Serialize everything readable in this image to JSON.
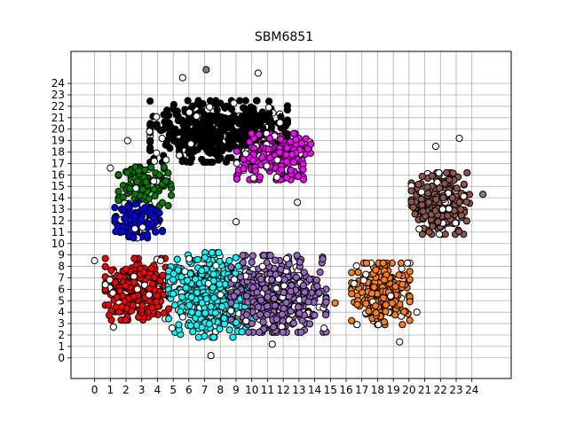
{
  "chart_data": {
    "type": "scatter",
    "title": "SBM6851",
    "xlabel": "",
    "ylabel": "",
    "xlim": [
      -1.5,
      26.5
    ],
    "ylim": [
      -1.8,
      26.8
    ],
    "x_ticks": [
      0,
      1,
      2,
      3,
      4,
      5,
      6,
      7,
      8,
      9,
      10,
      11,
      12,
      13,
      14,
      15,
      16,
      17,
      18,
      19,
      20,
      21,
      22,
      23,
      24
    ],
    "y_ticks": [
      0,
      1,
      2,
      3,
      4,
      5,
      6,
      7,
      8,
      9,
      10,
      11,
      12,
      13,
      14,
      15,
      16,
      17,
      18,
      19,
      20,
      21,
      22,
      23,
      24
    ],
    "grid": true,
    "legend": "none",
    "marker_edge_color": "#000000",
    "clusters": [
      {
        "color": "#000000",
        "center": [
          7.9,
          19.8
        ],
        "spread": [
          2.6,
          1.6
        ],
        "count": 600
      },
      {
        "color": "#ff00ff",
        "center": [
          11.4,
          17.6
        ],
        "spread": [
          1.4,
          1.2
        ],
        "count": 260
      },
      {
        "color": "#008000",
        "center": [
          3.2,
          15.0
        ],
        "spread": [
          1.0,
          1.0
        ],
        "count": 150
      },
      {
        "color": "#0000ff",
        "center": [
          2.8,
          12.0
        ],
        "spread": [
          0.9,
          0.9
        ],
        "count": 150
      },
      {
        "color": "#ff0000",
        "center": [
          2.7,
          6.0
        ],
        "spread": [
          1.2,
          1.6
        ],
        "count": 330
      },
      {
        "color": "#00ffff",
        "center": [
          7.4,
          5.5
        ],
        "spread": [
          1.6,
          2.2
        ],
        "count": 420
      },
      {
        "color": "#9467bd",
        "center": [
          11.7,
          5.6
        ],
        "spread": [
          1.8,
          2.0
        ],
        "count": 420
      },
      {
        "color": "#ff7f0e",
        "center": [
          18.2,
          5.6
        ],
        "spread": [
          1.1,
          1.6
        ],
        "count": 260
      },
      {
        "color": "#8c564b",
        "center": [
          22.0,
          13.5
        ],
        "spread": [
          1.1,
          1.6
        ],
        "count": 260
      }
    ],
    "outliers": [
      {
        "x": 0,
        "y": 8.5,
        "fill": "#ffffff"
      },
      {
        "x": 2.1,
        "y": 19.0,
        "fill": "#ffffff"
      },
      {
        "x": 3.5,
        "y": 19.8,
        "fill": "#ffffff"
      },
      {
        "x": 1.0,
        "y": 16.6,
        "fill": "#ffffff"
      },
      {
        "x": 7.1,
        "y": 25.2,
        "fill": "#808080"
      },
      {
        "x": 10.4,
        "y": 24.9,
        "fill": "#ffffff"
      },
      {
        "x": 24.7,
        "y": 14.3,
        "fill": "#808080"
      },
      {
        "x": 23.2,
        "y": 19.2,
        "fill": "#ffffff"
      },
      {
        "x": 21.7,
        "y": 18.5,
        "fill": "#ffffff"
      },
      {
        "x": 20.8,
        "y": 14.5,
        "fill": "#ffffff"
      },
      {
        "x": 16.5,
        "y": 6.5,
        "fill": "#ffffff"
      },
      {
        "x": 15.3,
        "y": 4.8,
        "fill": "#ff7f0e"
      },
      {
        "x": 19.4,
        "y": 1.4,
        "fill": "#ffffff"
      },
      {
        "x": 11.3,
        "y": 1.2,
        "fill": "#ffffff"
      },
      {
        "x": 7.4,
        "y": 0.2,
        "fill": "#ffffff"
      },
      {
        "x": 1.2,
        "y": 2.7,
        "fill": "#ffffff"
      },
      {
        "x": 5.0,
        "y": 5.6,
        "fill": "#00ffff"
      },
      {
        "x": 9.0,
        "y": 11.9,
        "fill": "#ffffff"
      },
      {
        "x": 12.9,
        "y": 13.6,
        "fill": "#ffffff"
      },
      {
        "x": 3.8,
        "y": 17.2,
        "fill": "#ffffff"
      },
      {
        "x": 11.6,
        "y": 15.8,
        "fill": "#ffffff"
      },
      {
        "x": 5.6,
        "y": 24.5,
        "fill": "#ffffff"
      },
      {
        "x": 20.5,
        "y": 4.0,
        "fill": "#ffffff"
      },
      {
        "x": 14.6,
        "y": 2.6,
        "fill": "#ffffff"
      },
      {
        "x": 4.2,
        "y": 8.5,
        "fill": "#ffffff"
      }
    ]
  }
}
